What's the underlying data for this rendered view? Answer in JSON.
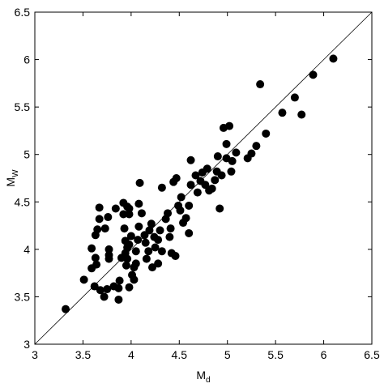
{
  "chart_data": {
    "type": "scatter",
    "x_label": {
      "base": "M",
      "sub": "d"
    },
    "y_label": {
      "base": "M",
      "sub": "W"
    },
    "xlim": [
      3,
      6.5
    ],
    "ylim": [
      3,
      6.5
    ],
    "xticks": [
      3,
      3.5,
      4,
      4.5,
      5,
      5.5,
      6,
      6.5
    ],
    "yticks": [
      3,
      3.5,
      4,
      4.5,
      5,
      5.5,
      6,
      6.5
    ],
    "grid": false,
    "identity_line": true,
    "color": "#000000",
    "x": [
      3.32,
      3.51,
      3.59,
      3.59,
      3.63,
      3.63,
      3.65,
      3.67,
      3.67,
      3.64,
      3.62,
      3.68,
      3.72,
      3.75,
      3.73,
      3.76,
      3.77,
      3.77,
      3.77,
      3.82,
      3.87,
      3.84,
      3.88,
      3.87,
      3.9,
      3.93,
      3.92,
      3.92,
      3.94,
      3.96,
      3.96,
      3.98,
      3.98,
      3.94,
      3.95,
      3.96,
      3.98,
      4.0,
      4.01,
      4.03,
      4.03,
      3.98,
      4.05,
      4.05,
      4.07,
      4.08,
      4.08,
      4.09,
      4.11,
      4.14,
      4.15,
      4.16,
      4.18,
      4.19,
      4.21,
      4.24,
      4.25,
      4.28,
      4.3,
      4.22,
      4.28,
      4.32,
      4.32,
      4.36,
      4.38,
      4.4,
      4.41,
      4.42,
      4.46,
      4.44,
      4.47,
      4.49,
      4.51,
      4.52,
      4.54,
      4.57,
      4.6,
      4.6,
      4.62,
      4.62,
      4.67,
      4.69,
      4.72,
      4.74,
      4.77,
      4.79,
      4.81,
      4.84,
      4.87,
      4.89,
      4.9,
      4.92,
      4.94,
      4.96,
      4.99,
      4.99,
      5.02,
      5.04,
      5.05,
      5.09,
      5.21,
      5.25,
      5.3,
      5.34,
      5.4,
      5.57,
      5.7,
      5.77,
      5.89,
      6.1
    ],
    "y": [
      3.37,
      3.68,
      4.01,
      3.8,
      3.91,
      4.15,
      4.21,
      4.32,
      4.44,
      3.84,
      3.61,
      3.57,
      3.5,
      3.58,
      4.22,
      4.34,
      4.0,
      3.9,
      3.94,
      3.61,
      3.59,
      4.43,
      3.67,
      3.47,
      3.91,
      4.22,
      4.37,
      4.49,
      4.09,
      4.02,
      4.45,
      4.37,
      4.43,
      3.96,
      3.83,
      3.9,
      4.05,
      4.14,
      3.73,
      3.81,
      3.68,
      3.6,
      3.85,
      3.98,
      4.1,
      4.24,
      4.48,
      4.7,
      4.38,
      4.15,
      4.07,
      3.9,
      3.98,
      4.2,
      4.27,
      4.13,
      4.02,
      4.1,
      4.2,
      3.81,
      3.85,
      3.98,
      4.65,
      4.32,
      4.38,
      4.13,
      4.22,
      3.96,
      3.93,
      4.71,
      4.75,
      4.46,
      4.41,
      4.55,
      4.28,
      4.33,
      4.17,
      4.46,
      4.68,
      4.94,
      4.78,
      4.6,
      4.72,
      4.81,
      4.68,
      4.85,
      4.62,
      4.64,
      4.73,
      4.82,
      4.98,
      4.43,
      4.78,
      5.28,
      5.11,
      4.96,
      5.3,
      4.82,
      4.93,
      5.02,
      4.96,
      5.01,
      5.09,
      5.74,
      5.22,
      5.44,
      5.6,
      5.42,
      5.84,
      6.01
    ]
  }
}
